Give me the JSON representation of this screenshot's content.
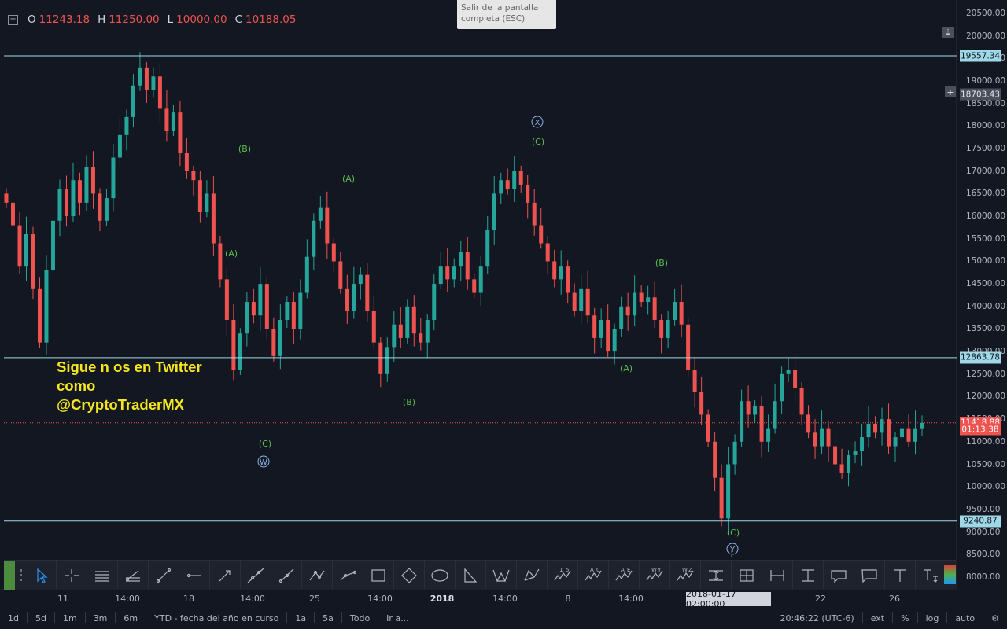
{
  "ohlc": {
    "o_key": "O",
    "o": "11243.18",
    "h_key": "H",
    "h": "11250.00",
    "l_key": "L",
    "l": "10000.00",
    "c_key": "C",
    "c": "10188.05"
  },
  "tooltip": {
    "line1": "Salir de la pantalla",
    "line2": "completa (ESC)"
  },
  "promo": {
    "line1": "Sigue n os en Twitter",
    "line2": "como",
    "line3": "@CryptoTraderMX"
  },
  "price_axis": {
    "ticks": [
      "20500.00",
      "20000.00",
      "19500.00",
      "19000.00",
      "18500.00",
      "18000.00",
      "17500.00",
      "17000.00",
      "16500.00",
      "16000.00",
      "15500.00",
      "15000.00",
      "14500.00",
      "14000.00",
      "13500.00",
      "13000.00",
      "12500.00",
      "12000.00",
      "11500.00",
      "11000.00",
      "10500.00",
      "10000.00",
      "9500.00",
      "9000.00",
      "8500.00",
      "8000.00"
    ],
    "tags": [
      {
        "label": "19557.34",
        "price": 19557.34,
        "kind": "line"
      },
      {
        "label": "18703.43",
        "price": 18703.43,
        "kind": "cursor"
      },
      {
        "label": "12863.78",
        "price": 12863.78,
        "kind": "line"
      },
      {
        "label": "11418.88",
        "price": 11418.88,
        "kind": "last"
      },
      {
        "label": "01:13:38",
        "price": 11268,
        "kind": "countdown"
      },
      {
        "label": "9240.87",
        "price": 9240.87,
        "kind": "line"
      }
    ]
  },
  "time_axis": {
    "labels": [
      {
        "text": "11",
        "bold": false
      },
      {
        "text": "14:00",
        "bold": false
      },
      {
        "text": "18",
        "bold": false
      },
      {
        "text": "14:00",
        "bold": false
      },
      {
        "text": "25",
        "bold": false
      },
      {
        "text": "14:00",
        "bold": false
      },
      {
        "text": "2018",
        "bold": true
      },
      {
        "text": "14:00",
        "bold": false
      },
      {
        "text": "8",
        "bold": false
      },
      {
        "text": "14:00",
        "bold": false
      },
      {
        "text": "22",
        "bold": false
      },
      {
        "text": "26",
        "bold": false
      }
    ],
    "cursor_time": "2018-01-17 02:00:00"
  },
  "wave_labels": [
    {
      "text": "(B)",
      "kind": "label"
    },
    {
      "text": "(A)",
      "kind": "label"
    },
    {
      "text": "(C)",
      "kind": "label"
    },
    {
      "text": "W",
      "kind": "circle"
    },
    {
      "text": "(A)",
      "kind": "label"
    },
    {
      "text": "(B)",
      "kind": "label"
    },
    {
      "text": "X",
      "kind": "circle"
    },
    {
      "text": "(C)",
      "kind": "label"
    },
    {
      "text": "(B)",
      "kind": "label"
    },
    {
      "text": "(A)",
      "kind": "label"
    },
    {
      "text": "(C)",
      "kind": "label"
    },
    {
      "text": "Y",
      "kind": "circle"
    }
  ],
  "toolbar": {
    "tools": [
      {
        "name": "cursor-icon"
      },
      {
        "name": "crosshair-icon"
      },
      {
        "name": "horizontal-lines-icon"
      },
      {
        "name": "fib-channel-icon"
      },
      {
        "name": "trend-line-icon"
      },
      {
        "name": "horizontal-ray-icon"
      },
      {
        "name": "arrow-line-icon"
      },
      {
        "name": "extended-line-icon"
      },
      {
        "name": "ray-icon"
      },
      {
        "name": "polyline-icon"
      },
      {
        "name": "path-icon"
      },
      {
        "name": "rectangle-icon"
      },
      {
        "name": "rotated-rectangle-icon"
      },
      {
        "name": "ellipse-icon"
      },
      {
        "name": "triangle-icon"
      },
      {
        "name": "xabcd-pattern-icon"
      },
      {
        "name": "abcd-pattern-icon"
      },
      {
        "name": "elliott-impulse-icon",
        "text": "1 5"
      },
      {
        "name": "elliott-correction-icon",
        "text": "A C"
      },
      {
        "name": "elliott-triangle-icon",
        "text": "A E"
      },
      {
        "name": "elliott-double-combo-icon",
        "text": "W Y"
      },
      {
        "name": "elliott-triple-combo-icon",
        "text": "W Z"
      },
      {
        "name": "date-range-icon"
      },
      {
        "name": "date-price-range-icon"
      },
      {
        "name": "price-range-horizontal-icon"
      },
      {
        "name": "price-range-vertical-icon"
      },
      {
        "name": "callout-icon"
      },
      {
        "name": "balloon-icon"
      },
      {
        "name": "text-icon"
      },
      {
        "name": "anchored-text-icon"
      }
    ]
  },
  "bottom_bar": {
    "ranges": [
      "1d",
      "5d",
      "1m",
      "3m",
      "6m",
      "YTD - fecha del año en curso",
      "1a",
      "5a",
      "Todo",
      "Ir a..."
    ],
    "clock": "20:46:22 (UTC-6)",
    "ext": "ext",
    "percent": "%",
    "log": "log",
    "auto": "auto"
  },
  "colors": {
    "background": "#131722",
    "up": "#26a69a",
    "down": "#ef5350",
    "level_line": "#9fd8e6",
    "wave_label": "#5dbd4f",
    "promo": "#f5e61e"
  },
  "chart_data": {
    "type": "candlestick",
    "y_range": [
      7700,
      20800
    ],
    "closes": [
      16300,
      15800,
      14900,
      15600,
      14400,
      13200,
      14800,
      15900,
      16600,
      16000,
      16800,
      16300,
      17100,
      16500,
      15900,
      16400,
      17300,
      17800,
      18200,
      18900,
      19300,
      18800,
      19100,
      18400,
      17900,
      18300,
      17400,
      17000,
      16800,
      16100,
      16500,
      15400,
      14600,
      13700,
      12600,
      13400,
      14100,
      13800,
      14500,
      13500,
      12900,
      13700,
      14100,
      13500,
      14300,
      15100,
      15900,
      16200,
      15400,
      15000,
      14400,
      13900,
      14500,
      14700,
      13900,
      13200,
      12500,
      13100,
      13600,
      13300,
      14000,
      13400,
      13200,
      13700,
      14500,
      14900,
      14600,
      14900,
      15200,
      14600,
      14300,
      14900,
      15700,
      16500,
      16800,
      16600,
      17000,
      16700,
      16300,
      15800,
      15400,
      15000,
      14600,
      14900,
      14300,
      13900,
      14400,
      13800,
      13300,
      13700,
      13000,
      13500,
      14000,
      13800,
      14300,
      14100,
      14200,
      13700,
      13300,
      13700,
      14100,
      13600,
      12600,
      12100,
      11600,
      11000,
      10200,
      9300,
      10500,
      11000,
      11900,
      11600,
      11800,
      11000,
      11300,
      11900,
      12500,
      12600,
      12200,
      11600,
      11200,
      10900,
      11300,
      10900,
      10500,
      10300,
      10700,
      10800,
      11100,
      11400,
      11200,
      11500,
      10900,
      11100,
      11300,
      11000,
      11300,
      11418
    ]
  }
}
